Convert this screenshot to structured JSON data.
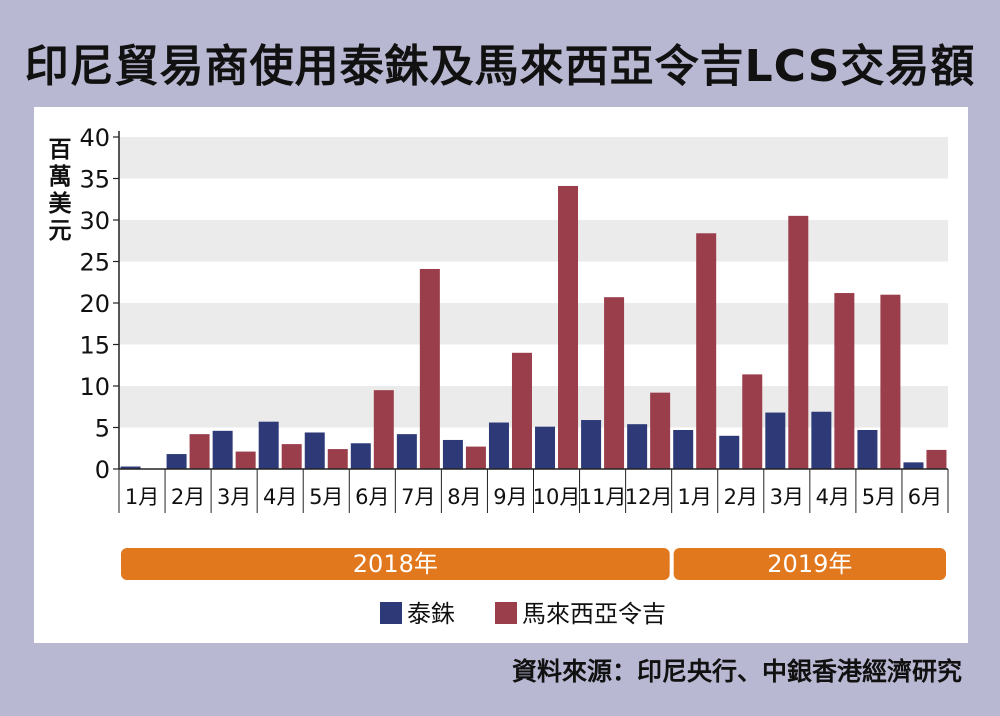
{
  "title": "印尼貿易商使用泰銖及馬來西亞令吉LCS交易額",
  "source": "資料來源：印尼央行、中銀香港經濟研究",
  "colors": {
    "thb": "#2e3a78",
    "myr": "#9a3e4c",
    "year_bar": "#e2781e",
    "background": "#b9b8d2",
    "grid_band": "#ebebeb"
  },
  "chart_data": {
    "type": "bar",
    "ylabel": "百萬美元",
    "ylim": [
      0,
      40
    ],
    "yticks": [
      0,
      5,
      10,
      15,
      20,
      25,
      30,
      35,
      40
    ],
    "categories": [
      "1月",
      "2月",
      "3月",
      "4月",
      "5月",
      "6月",
      "7月",
      "8月",
      "9月",
      "10月",
      "11月",
      "12月",
      "1月",
      "2月",
      "3月",
      "4月",
      "5月",
      "6月"
    ],
    "year_groups": [
      {
        "label": "2018年",
        "start": 0,
        "end": 11
      },
      {
        "label": "2019年",
        "start": 12,
        "end": 17
      }
    ],
    "series": [
      {
        "name": "泰銖",
        "color": "#2e3a78",
        "values": [
          0.3,
          1.8,
          4.6,
          5.7,
          4.4,
          3.1,
          4.2,
          3.5,
          5.6,
          5.1,
          5.9,
          5.4,
          4.7,
          4.0,
          6.8,
          6.9,
          4.7,
          0.8
        ]
      },
      {
        "name": "馬來西亞令吉",
        "color": "#9a3e4c",
        "values": [
          0,
          4.2,
          2.1,
          3.0,
          2.4,
          9.5,
          24.1,
          2.7,
          14.0,
          34.1,
          20.7,
          9.2,
          28.4,
          11.4,
          30.5,
          21.2,
          21.0,
          2.3
        ]
      }
    ],
    "grid": "alternating-bands",
    "legend": "bottom-center"
  }
}
